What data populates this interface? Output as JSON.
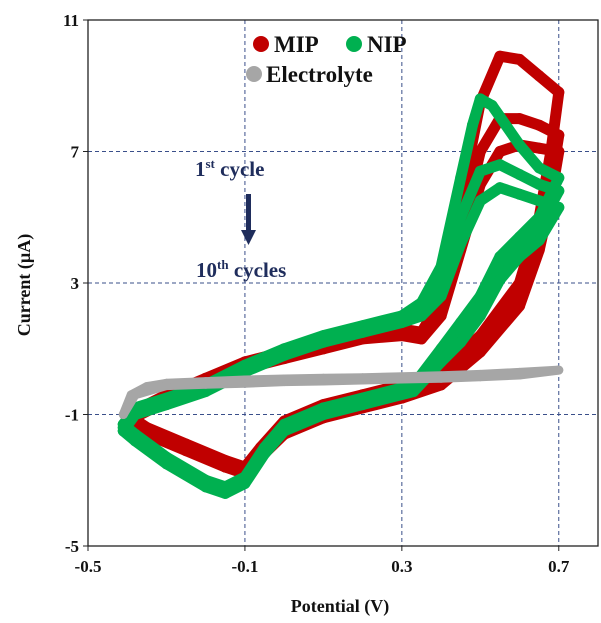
{
  "chart_data": {
    "type": "line",
    "xlabel": "Potential (V)",
    "ylabel": "Current (µA)",
    "xlim": [
      -0.5,
      0.8
    ],
    "ylim": [
      -5,
      11
    ],
    "x_ticks": [
      "-0.5",
      "-0.1",
      "0.3",
      "0.7"
    ],
    "y_ticks": [
      "-5",
      "-1",
      "3",
      "7",
      "11"
    ],
    "grid": "dashed at ticks",
    "legend_placement": "top",
    "annotation": {
      "top": {
        "num": "1",
        "sup": "st",
        "rest": " cycle"
      },
      "bottom": {
        "num": "10",
        "sup": "th",
        "rest": " cycles"
      }
    },
    "series": [
      {
        "name": "MIP",
        "color": "#c00000",
        "cycles": [
          {
            "forward": [
              [
                -0.4,
                -1.0
              ],
              [
                -0.3,
                -0.4
              ],
              [
                -0.2,
                0.1
              ],
              [
                -0.1,
                0.6
              ],
              [
                0.0,
                0.9
              ],
              [
                0.1,
                1.2
              ],
              [
                0.2,
                1.5
              ],
              [
                0.3,
                1.6
              ],
              [
                0.35,
                1.5
              ],
              [
                0.4,
                2.5
              ],
              [
                0.45,
                5.5
              ],
              [
                0.5,
                8.5
              ],
              [
                0.55,
                9.9
              ],
              [
                0.6,
                9.8
              ],
              [
                0.65,
                9.3
              ],
              [
                0.7,
                8.8
              ]
            ],
            "reverse": [
              [
                0.7,
                8.8
              ],
              [
                0.68,
                7.0
              ],
              [
                0.65,
                5.0
              ],
              [
                0.6,
                3.0
              ],
              [
                0.5,
                1.4
              ],
              [
                0.4,
                0.3
              ],
              [
                0.3,
                -0.1
              ],
              [
                0.2,
                -0.4
              ],
              [
                0.1,
                -0.7
              ],
              [
                0.0,
                -1.2
              ],
              [
                -0.06,
                -2.0
              ],
              [
                -0.1,
                -2.6
              ],
              [
                -0.15,
                -2.4
              ],
              [
                -0.25,
                -1.9
              ],
              [
                -0.35,
                -1.4
              ],
              [
                -0.4,
                -1.0
              ]
            ]
          },
          {
            "forward": [
              [
                -0.4,
                -1.1
              ],
              [
                -0.3,
                -0.5
              ],
              [
                -0.2,
                0.0
              ],
              [
                -0.1,
                0.5
              ],
              [
                0.0,
                0.8
              ],
              [
                0.1,
                1.1
              ],
              [
                0.2,
                1.4
              ],
              [
                0.3,
                1.5
              ],
              [
                0.35,
                1.4
              ],
              [
                0.4,
                2.2
              ],
              [
                0.45,
                4.5
              ],
              [
                0.5,
                7.0
              ],
              [
                0.55,
                8.0
              ],
              [
                0.6,
                8.0
              ],
              [
                0.65,
                7.8
              ],
              [
                0.7,
                7.5
              ]
            ],
            "reverse": [
              [
                0.7,
                7.5
              ],
              [
                0.68,
                6.0
              ],
              [
                0.65,
                4.4
              ],
              [
                0.6,
                2.6
              ],
              [
                0.5,
                1.1
              ],
              [
                0.4,
                0.1
              ],
              [
                0.3,
                -0.3
              ],
              [
                0.2,
                -0.6
              ],
              [
                0.1,
                -0.9
              ],
              [
                0.0,
                -1.4
              ],
              [
                -0.06,
                -2.1
              ],
              [
                -0.1,
                -2.7
              ],
              [
                -0.15,
                -2.5
              ],
              [
                -0.25,
                -2.0
              ],
              [
                -0.35,
                -1.5
              ],
              [
                -0.4,
                -1.1
              ]
            ]
          },
          {
            "forward": [
              [
                -0.4,
                -1.2
              ],
              [
                -0.3,
                -0.6
              ],
              [
                -0.2,
                -0.1
              ],
              [
                -0.1,
                0.4
              ],
              [
                0.0,
                0.7
              ],
              [
                0.1,
                1.0
              ],
              [
                0.2,
                1.3
              ],
              [
                0.3,
                1.4
              ],
              [
                0.35,
                1.3
              ],
              [
                0.4,
                2.0
              ],
              [
                0.45,
                4.0
              ],
              [
                0.5,
                6.0
              ],
              [
                0.55,
                7.0
              ],
              [
                0.6,
                7.2
              ],
              [
                0.65,
                7.1
              ],
              [
                0.7,
                7.0
              ]
            ],
            "reverse": [
              [
                0.7,
                7.0
              ],
              [
                0.68,
                5.6
              ],
              [
                0.65,
                4.0
              ],
              [
                0.6,
                2.3
              ],
              [
                0.5,
                0.9
              ],
              [
                0.4,
                -0.1
              ],
              [
                0.3,
                -0.5
              ],
              [
                0.2,
                -0.8
              ],
              [
                0.1,
                -1.1
              ],
              [
                0.0,
                -1.6
              ],
              [
                -0.06,
                -2.3
              ],
              [
                -0.1,
                -2.8
              ],
              [
                -0.15,
                -2.6
              ],
              [
                -0.25,
                -2.1
              ],
              [
                -0.35,
                -1.6
              ],
              [
                -0.4,
                -1.2
              ]
            ]
          }
        ]
      },
      {
        "name": "NIP",
        "color": "#00b050",
        "cycles": [
          {
            "forward": [
              [
                -0.41,
                -1.3
              ],
              [
                -0.38,
                -0.8
              ],
              [
                -0.3,
                -0.5
              ],
              [
                -0.2,
                -0.1
              ],
              [
                -0.1,
                0.5
              ],
              [
                0.0,
                1.0
              ],
              [
                0.1,
                1.4
              ],
              [
                0.2,
                1.7
              ],
              [
                0.3,
                2.0
              ],
              [
                0.35,
                2.4
              ],
              [
                0.4,
                3.5
              ],
              [
                0.45,
                6.2
              ],
              [
                0.48,
                7.8
              ],
              [
                0.5,
                8.6
              ],
              [
                0.53,
                8.4
              ],
              [
                0.6,
                7.2
              ],
              [
                0.65,
                6.5
              ],
              [
                0.7,
                6.2
              ]
            ],
            "reverse": [
              [
                0.7,
                6.2
              ],
              [
                0.65,
                5.0
              ],
              [
                0.6,
                4.4
              ],
              [
                0.55,
                3.8
              ],
              [
                0.5,
                2.6
              ],
              [
                0.45,
                1.8
              ],
              [
                0.4,
                1.0
              ],
              [
                0.33,
                -0.1
              ],
              [
                0.2,
                -0.5
              ],
              [
                0.1,
                -0.8
              ],
              [
                0.0,
                -1.3
              ],
              [
                -0.05,
                -2.0
              ],
              [
                -0.1,
                -2.9
              ],
              [
                -0.15,
                -3.2
              ],
              [
                -0.2,
                -3.0
              ],
              [
                -0.3,
                -2.3
              ],
              [
                -0.38,
                -1.6
              ],
              [
                -0.41,
                -1.3
              ]
            ]
          },
          {
            "forward": [
              [
                -0.41,
                -1.4
              ],
              [
                -0.38,
                -0.9
              ],
              [
                -0.3,
                -0.6
              ],
              [
                -0.2,
                -0.2
              ],
              [
                -0.1,
                0.4
              ],
              [
                0.0,
                0.9
              ],
              [
                0.1,
                1.3
              ],
              [
                0.2,
                1.6
              ],
              [
                0.3,
                1.9
              ],
              [
                0.35,
                2.2
              ],
              [
                0.4,
                3.0
              ],
              [
                0.45,
                5.0
              ],
              [
                0.5,
                6.4
              ],
              [
                0.55,
                6.6
              ],
              [
                0.6,
                6.3
              ],
              [
                0.65,
                6.0
              ],
              [
                0.7,
                5.8
              ]
            ],
            "reverse": [
              [
                0.7,
                5.8
              ],
              [
                0.65,
                4.7
              ],
              [
                0.6,
                4.1
              ],
              [
                0.55,
                3.4
              ],
              [
                0.5,
                2.3
              ],
              [
                0.45,
                1.5
              ],
              [
                0.4,
                0.8
              ],
              [
                0.33,
                -0.2
              ],
              [
                0.2,
                -0.6
              ],
              [
                0.1,
                -0.9
              ],
              [
                0.0,
                -1.4
              ],
              [
                -0.05,
                -2.1
              ],
              [
                -0.1,
                -3.0
              ],
              [
                -0.15,
                -3.3
              ],
              [
                -0.2,
                -3.1
              ],
              [
                -0.3,
                -2.4
              ],
              [
                -0.38,
                -1.7
              ],
              [
                -0.41,
                -1.4
              ]
            ]
          },
          {
            "forward": [
              [
                -0.41,
                -1.5
              ],
              [
                -0.38,
                -1.0
              ],
              [
                -0.3,
                -0.7
              ],
              [
                -0.2,
                -0.3
              ],
              [
                -0.1,
                0.3
              ],
              [
                0.0,
                0.8
              ],
              [
                0.1,
                1.2
              ],
              [
                0.2,
                1.5
              ],
              [
                0.3,
                1.8
              ],
              [
                0.35,
                2.0
              ],
              [
                0.4,
                2.6
              ],
              [
                0.45,
                4.2
              ],
              [
                0.5,
                5.5
              ],
              [
                0.55,
                5.9
              ],
              [
                0.6,
                5.7
              ],
              [
                0.65,
                5.5
              ],
              [
                0.7,
                5.3
              ]
            ],
            "reverse": [
              [
                0.7,
                5.3
              ],
              [
                0.65,
                4.3
              ],
              [
                0.6,
                3.8
              ],
              [
                0.55,
                3.1
              ],
              [
                0.5,
                2.0
              ],
              [
                0.45,
                1.2
              ],
              [
                0.4,
                0.6
              ],
              [
                0.33,
                -0.3
              ],
              [
                0.2,
                -0.7
              ],
              [
                0.1,
                -1.0
              ],
              [
                0.0,
                -1.5
              ],
              [
                -0.05,
                -2.2
              ],
              [
                -0.1,
                -3.1
              ],
              [
                -0.15,
                -3.4
              ],
              [
                -0.2,
                -3.2
              ],
              [
                -0.3,
                -2.5
              ],
              [
                -0.38,
                -1.8
              ],
              [
                -0.41,
                -1.5
              ]
            ]
          }
        ]
      },
      {
        "name": "Electrolyte",
        "color": "#a6a6a6",
        "cycles": [
          {
            "forward": [
              [
                -0.41,
                -1.0
              ],
              [
                -0.39,
                -0.4
              ],
              [
                -0.35,
                -0.15
              ],
              [
                -0.3,
                -0.05
              ],
              [
                -0.2,
                0.0
              ],
              [
                -0.1,
                0.05
              ],
              [
                0.0,
                0.08
              ],
              [
                0.1,
                0.1
              ],
              [
                0.2,
                0.12
              ],
              [
                0.3,
                0.15
              ],
              [
                0.4,
                0.18
              ],
              [
                0.5,
                0.22
              ],
              [
                0.6,
                0.28
              ],
              [
                0.7,
                0.35
              ]
            ],
            "reverse": [
              [
                0.7,
                0.35
              ],
              [
                0.6,
                0.2
              ],
              [
                0.5,
                0.15
              ],
              [
                0.4,
                0.1
              ],
              [
                0.3,
                0.08
              ],
              [
                0.2,
                0.05
              ],
              [
                0.1,
                0.02
              ],
              [
                0.0,
                0.0
              ],
              [
                -0.1,
                -0.05
              ],
              [
                -0.2,
                -0.08
              ],
              [
                -0.3,
                -0.12
              ],
              [
                -0.38,
                -0.4
              ],
              [
                -0.41,
                -1.0
              ]
            ]
          }
        ]
      }
    ]
  }
}
